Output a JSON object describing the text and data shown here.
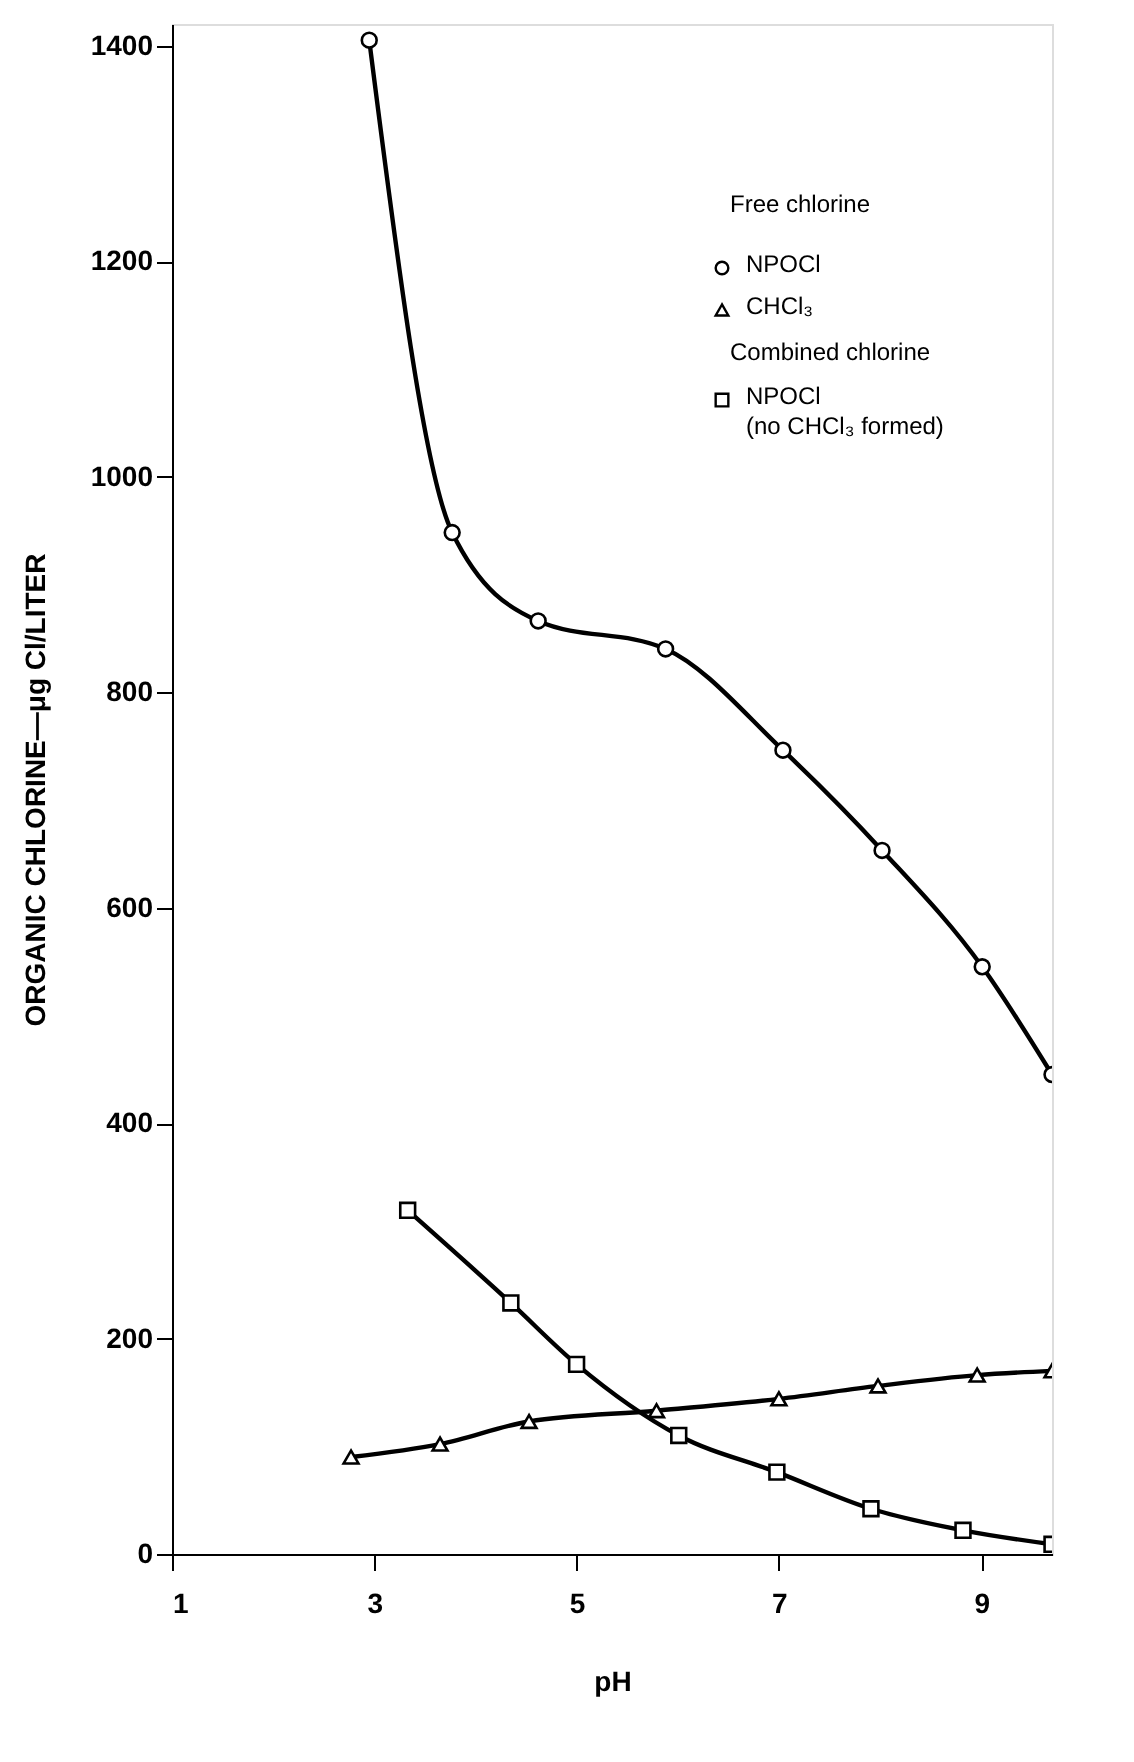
{
  "chart_data": {
    "type": "line",
    "xlabel": "pH",
    "ylabel": "ORGANIC CHLORINE—μg Cl/LITER",
    "xlim": [
      1,
      9.7
    ],
    "xticks": [
      1,
      3,
      5,
      7,
      9
    ],
    "ylim": [
      0,
      1420
    ],
    "yticks": [
      0,
      200,
      400,
      600,
      800,
      1000,
      1200,
      1400
    ],
    "grid": false,
    "legend": "top right",
    "line_style": "solid",
    "annotations": [
      "Free chlorine",
      "Combined chlorine"
    ],
    "series": [
      {
        "name": "NPOCl",
        "color": "#000000",
        "marker": "circle",
        "x": [
          2.95,
          3.77,
          4.62,
          5.88,
          7.04,
          8.02,
          9.01,
          9.7
        ],
        "values": [
          1405,
          948,
          866,
          840,
          746,
          653,
          545,
          445
        ]
      },
      {
        "name": "CHCl₃",
        "color": "#000000",
        "marker": "triangle",
        "x": [
          2.77,
          3.65,
          4.53,
          5.79,
          7.0,
          7.98,
          8.96,
          9.7
        ],
        "values": [
          90,
          102,
          123,
          133,
          144,
          156,
          166,
          170
        ]
      },
      {
        "name": "NPOCl\n(no CHCl₃ formed)",
        "color": "#000000",
        "marker": "square",
        "x": [
          3.33,
          4.35,
          5.0,
          6.01,
          6.98,
          7.91,
          8.82,
          9.7
        ],
        "values": [
          319,
          233,
          176,
          110,
          76,
          42,
          22,
          9
        ]
      }
    ]
  }
}
